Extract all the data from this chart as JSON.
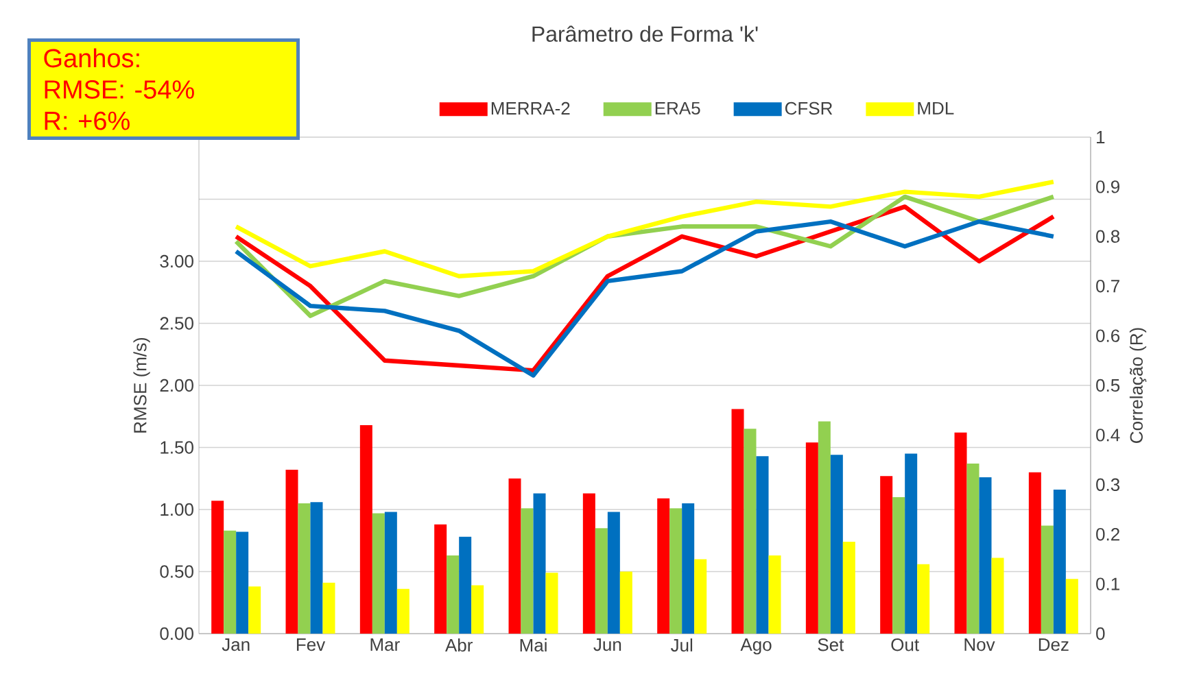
{
  "chart_data": {
    "type": "bar",
    "title": "Parâmetro de Forma 'k'",
    "categories": [
      "Jan",
      "Fev",
      "Mar",
      "Abr",
      "Mai",
      "Jun",
      "Jul",
      "Ago",
      "Set",
      "Out",
      "Nov",
      "Dez"
    ],
    "series": [
      {
        "name": "MERRA-2",
        "type": "bar",
        "color": "#ff0000",
        "values": [
          1.07,
          1.32,
          1.68,
          0.88,
          1.25,
          1.13,
          1.09,
          1.81,
          1.54,
          1.27,
          1.62,
          1.3
        ]
      },
      {
        "name": "ERA5",
        "type": "bar",
        "color": "#92d050",
        "values": [
          0.83,
          1.05,
          0.97,
          0.63,
          1.01,
          0.85,
          1.01,
          1.65,
          1.71,
          1.1,
          1.37,
          0.87
        ]
      },
      {
        "name": "CFSR",
        "type": "bar",
        "color": "#0070c0",
        "values": [
          0.82,
          1.06,
          0.98,
          0.78,
          1.13,
          0.98,
          1.05,
          1.43,
          1.44,
          1.45,
          1.26,
          1.16
        ]
      },
      {
        "name": "MDL",
        "type": "bar",
        "color": "#ffff00",
        "values": [
          0.38,
          0.41,
          0.36,
          0.39,
          0.49,
          0.5,
          0.6,
          0.63,
          0.74,
          0.56,
          0.61,
          0.44
        ]
      },
      {
        "type": "line",
        "axis": "y2",
        "color": "#ff0000",
        "values": [
          0.8,
          0.7,
          0.55,
          0.54,
          0.53,
          0.72,
          0.8,
          0.76,
          0.81,
          0.86,
          0.75,
          0.84
        ]
      },
      {
        "type": "line",
        "axis": "y2",
        "color": "#92d050",
        "values": [
          0.79,
          0.64,
          0.71,
          0.68,
          0.72,
          0.8,
          0.82,
          0.82,
          0.78,
          0.88,
          0.83,
          0.88
        ]
      },
      {
        "type": "line",
        "axis": "y2",
        "color": "#0070c0",
        "values": [
          0.77,
          0.66,
          0.65,
          0.61,
          0.52,
          0.71,
          0.73,
          0.81,
          0.83,
          0.78,
          0.83,
          0.8
        ]
      },
      {
        "type": "line",
        "axis": "y2",
        "color": "#ffff00",
        "values": [
          0.82,
          0.74,
          0.77,
          0.72,
          0.73,
          0.8,
          0.84,
          0.87,
          0.86,
          0.89,
          0.88,
          0.91
        ]
      }
    ],
    "ylabel": "RMSE (m/s)",
    "y2label": "Correlação (R)",
    "ylim": [
      0,
      4
    ],
    "yticks": [
      {
        "value": 0,
        "label": "0.00"
      },
      {
        "value": 0.5,
        "label": "0.50"
      },
      {
        "value": 1,
        "label": "1.00"
      },
      {
        "value": 1.5,
        "label": "1.50"
      },
      {
        "value": 2,
        "label": "2.00"
      },
      {
        "value": 2.5,
        "label": "2.50"
      },
      {
        "value": 3,
        "label": "3.00"
      },
      {
        "value": 3.5,
        "label": null
      }
    ],
    "y2lim": [
      0,
      1
    ],
    "y2ticks": [
      0,
      0.1,
      0.2,
      0.3,
      0.4,
      0.5,
      0.6,
      0.7,
      0.8,
      0.9,
      1
    ],
    "grid": "y",
    "legend": "top",
    "marker": "none",
    "line_style": "solid",
    "annotations": [
      "Ganhos:",
      "RMSE: -54%",
      "R: +6%"
    ]
  }
}
